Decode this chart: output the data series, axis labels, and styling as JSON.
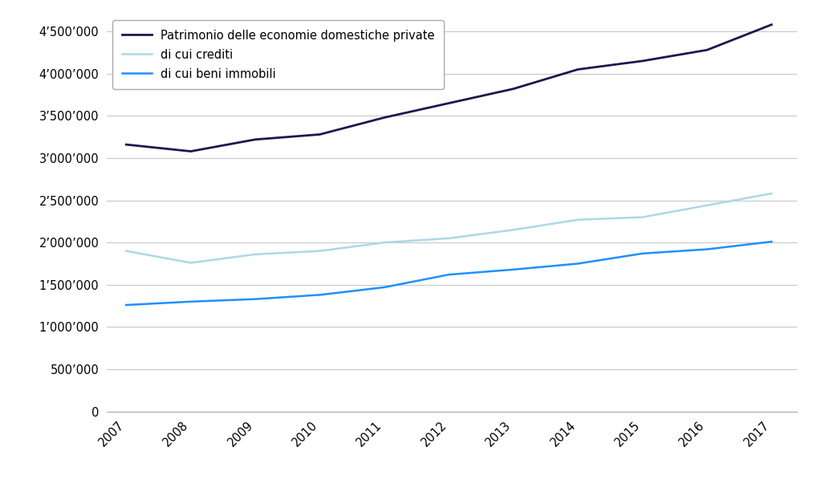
{
  "years": [
    2007,
    2008,
    2009,
    2010,
    2011,
    2012,
    2013,
    2014,
    2015,
    2016,
    2017
  ],
  "patrimonio": [
    3160000,
    3080000,
    3220000,
    3280000,
    3480000,
    3650000,
    3820000,
    4050000,
    4150000,
    4280000,
    4580000
  ],
  "crediti": [
    1900000,
    1760000,
    1860000,
    1900000,
    2000000,
    2050000,
    2150000,
    2270000,
    2300000,
    2440000,
    2580000
  ],
  "immobili": [
    1260000,
    1300000,
    1330000,
    1380000,
    1470000,
    1620000,
    1680000,
    1750000,
    1870000,
    1920000,
    2010000
  ],
  "line_colors": {
    "patrimonio": "#1a1a4e",
    "crediti": "#add8e6",
    "immobili": "#1e90ff"
  },
  "line_widths": {
    "patrimonio": 2.0,
    "crediti": 1.8,
    "immobili": 1.8
  },
  "legend_labels": {
    "patrimonio": "Patrimonio delle economie domestiche private",
    "crediti": "di cui crediti",
    "immobili": "di cui beni immobili"
  },
  "ylim": [
    0,
    4700000
  ],
  "yticks": [
    0,
    500000,
    1000000,
    1500000,
    2000000,
    2500000,
    3000000,
    3500000,
    4000000,
    4500000
  ],
  "background_color": "#ffffff",
  "grid_color": "#c8c8c8",
  "spine_color": "#aaaaaa",
  "tick_label_fontsize": 10.5,
  "legend_fontsize": 10.5
}
